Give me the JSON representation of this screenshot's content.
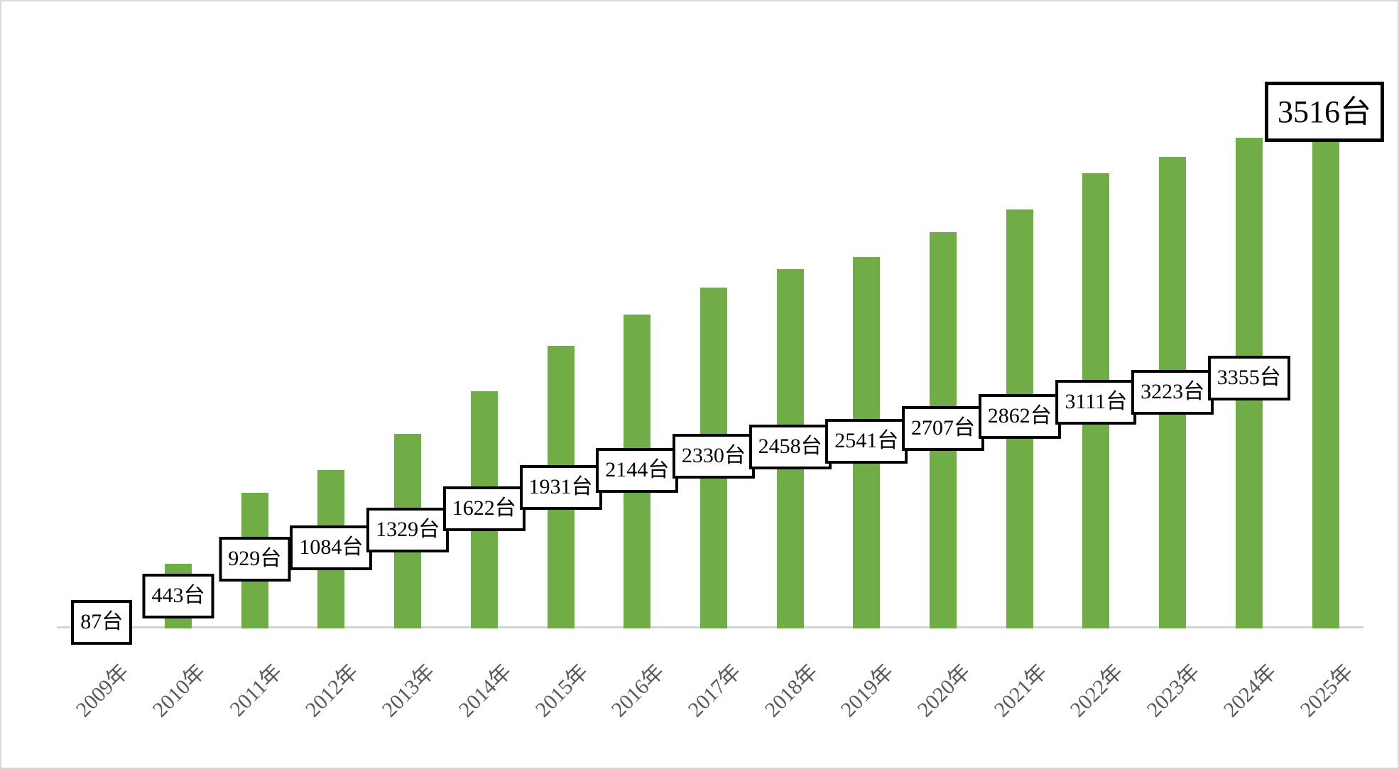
{
  "chart_data": {
    "type": "bar",
    "title": "",
    "xlabel": "",
    "ylabel": "",
    "unit_suffix": "台",
    "categories": [
      "2009年",
      "2010年",
      "2011年",
      "2012年",
      "2013年",
      "2014年",
      "2015年",
      "2016年",
      "2017年",
      "2018年",
      "2019年",
      "2020年",
      "2021年",
      "2022年",
      "2023年",
      "2024年",
      "2025年"
    ],
    "values": [
      87,
      443,
      929,
      1084,
      1329,
      1622,
      1931,
      2144,
      2330,
      2458,
      2541,
      2707,
      2862,
      3111,
      3223,
      3355,
      3516
    ],
    "data_labels": [
      "87台",
      "443台",
      "929台",
      "1084台",
      "1329台",
      "1622台",
      "1931台",
      "2144台",
      "2330台",
      "2458台",
      "2541台",
      "2707台",
      "2862台",
      "3111台",
      "3223台",
      "3355台",
      "3516台"
    ],
    "series": [
      {
        "name": "",
        "values": [
          87,
          443,
          929,
          1084,
          1329,
          1622,
          1931,
          2144,
          2330,
          2458,
          2541,
          2707,
          2862,
          3111,
          3223,
          3355,
          3516
        ]
      }
    ],
    "ylim": [
      0,
      3550
    ],
    "y_axis_visible": false,
    "gridlines": false,
    "legend": "none",
    "x_tick_rotation_deg": 45,
    "bar_color": "#70AD47",
    "axis_line_color": "#D4D4D4",
    "tick_label_color": "#595959",
    "data_label_text_color": "#000000",
    "data_label_box_fill": "#FFFFFF",
    "data_label_box_border": "#000000",
    "highlighted_last_label": "3516台"
  }
}
